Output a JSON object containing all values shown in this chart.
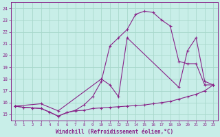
{
  "xlabel": "Windchill (Refroidissement éolien,°C)",
  "background_color": "#c8eee8",
  "grid_color": "#a8d8cc",
  "line_color": "#882288",
  "xlim": [
    -0.5,
    23.5
  ],
  "ylim": [
    14.5,
    24.5
  ],
  "yticks": [
    15,
    16,
    17,
    18,
    19,
    20,
    21,
    22,
    23,
    24
  ],
  "xticks": [
    0,
    1,
    2,
    3,
    4,
    5,
    6,
    7,
    8,
    9,
    10,
    11,
    12,
    13,
    14,
    15,
    16,
    17,
    18,
    19,
    20,
    21,
    22,
    23
  ],
  "line1_x": [
    0,
    1,
    2,
    3,
    4,
    5,
    6,
    7,
    8,
    9,
    10,
    11,
    12,
    13,
    14,
    15,
    16,
    17,
    18,
    19,
    20,
    21,
    22,
    23
  ],
  "line1_y": [
    15.7,
    15.6,
    15.55,
    15.5,
    15.2,
    14.85,
    15.15,
    15.3,
    15.35,
    15.5,
    15.55,
    15.6,
    15.65,
    15.7,
    15.75,
    15.8,
    15.9,
    16.0,
    16.1,
    16.3,
    16.5,
    16.7,
    17.0,
    17.5
  ],
  "line2_x": [
    0,
    1,
    2,
    3,
    4,
    5,
    6,
    7,
    8,
    9,
    10,
    11,
    12,
    13,
    14,
    15,
    16,
    17,
    18,
    19,
    20,
    21,
    22,
    23
  ],
  "line2_y": [
    15.7,
    15.6,
    15.55,
    15.5,
    15.2,
    14.85,
    15.15,
    15.35,
    15.8,
    16.5,
    17.8,
    20.8,
    21.5,
    22.2,
    23.5,
    23.75,
    23.65,
    23.0,
    22.5,
    19.5,
    19.3,
    19.3,
    17.5,
    17.5
  ],
  "line3_x": [
    0,
    3,
    5,
    10,
    11,
    12,
    13,
    19,
    20,
    21,
    22,
    23
  ],
  "line3_y": [
    15.7,
    15.9,
    15.3,
    18.0,
    17.5,
    16.5,
    21.5,
    17.3,
    20.4,
    21.5,
    17.8,
    17.5
  ]
}
